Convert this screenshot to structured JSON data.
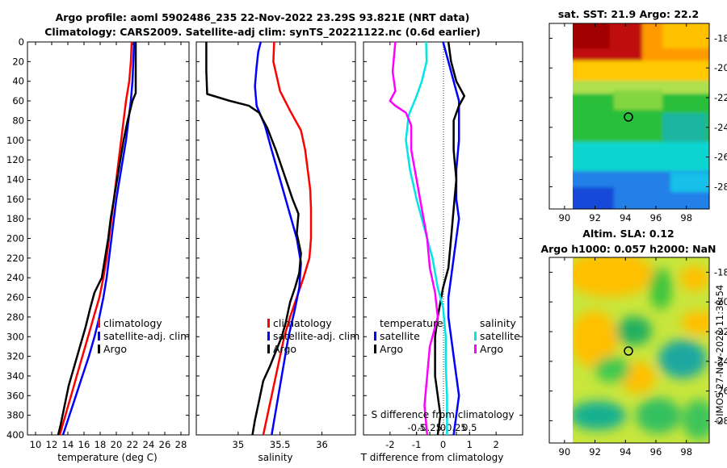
{
  "title_line1": "Argo profile: aoml 5902486_235 22-Nov-2022 23.29S 93.821E (NRT data)",
  "title_line2": "Climatology: CARS2009. Satellite-adj clim: synTS_20221122.nc (0.6d earlier)",
  "colors": {
    "climatology": "#ff0000",
    "satellite": "#0000ff",
    "argo": "#000000",
    "sat_salinity": "#00e5e5",
    "argo_salinity": "#ff00ff"
  },
  "legend_temp": {
    "clim": "climatology",
    "sat": "satellite-adj. clim",
    "argo": "Argo"
  },
  "legend_sal": {
    "clim": "climatology",
    "sat": "satellite-adj. clim",
    "argo": "Argo"
  },
  "legend_diff": {
    "temp_head": "temperature",
    "sal_head": "salinity",
    "sat": "satellite",
    "argo": "Argo",
    "sat2": "satellite",
    "argo2": "Argo"
  },
  "map_sst": {
    "title": "sat. SST: 21.9 Argo: 22.2",
    "lat": "23.29S",
    "lon": "93.821E"
  },
  "map_sla": {
    "title1": "Altim. SLA: 0.12",
    "title2": "Argo h1000: 0.057 h2000: NaN"
  },
  "credit": "©IMOS 27-Nov-2022 11:38:54",
  "chart_data": [
    {
      "type": "line",
      "panel": "temperature",
      "xlabel": "temperature (deg C)",
      "ylabel": "depth",
      "xlim": [
        9,
        29
      ],
      "ylim": [
        400,
        0
      ],
      "y_inverted": true,
      "xticks": [
        10,
        12,
        14,
        16,
        18,
        20,
        22,
        24,
        26,
        28
      ],
      "yticks": [
        0,
        20,
        40,
        60,
        80,
        100,
        120,
        140,
        160,
        180,
        200,
        220,
        240,
        260,
        280,
        300,
        320,
        340,
        360,
        380,
        400
      ],
      "series": [
        {
          "name": "climatology",
          "color": "#ff0000",
          "points": [
            [
              21.9,
              0
            ],
            [
              21.8,
              20
            ],
            [
              21.6,
              40
            ],
            [
              21.2,
              60
            ],
            [
              20.9,
              80
            ],
            [
              20.6,
              100
            ],
            [
              20.3,
              120
            ],
            [
              20.0,
              140
            ],
            [
              19.7,
              160
            ],
            [
              19.4,
              180
            ],
            [
              19.1,
              200
            ],
            [
              18.8,
              220
            ],
            [
              18.4,
              240
            ],
            [
              17.9,
              260
            ],
            [
              17.2,
              280
            ],
            [
              16.5,
              300
            ],
            [
              15.8,
              320
            ],
            [
              15.1,
              340
            ],
            [
              14.4,
              360
            ],
            [
              13.7,
              380
            ],
            [
              13.0,
              400
            ]
          ]
        },
        {
          "name": "satellite-adj. clim",
          "color": "#0000ff",
          "points": [
            [
              22.2,
              0
            ],
            [
              22.1,
              20
            ],
            [
              22.0,
              40
            ],
            [
              21.8,
              60
            ],
            [
              21.5,
              80
            ],
            [
              21.2,
              100
            ],
            [
              20.8,
              120
            ],
            [
              20.4,
              140
            ],
            [
              20.0,
              160
            ],
            [
              19.7,
              180
            ],
            [
              19.4,
              200
            ],
            [
              19.1,
              220
            ],
            [
              18.8,
              240
            ],
            [
              18.4,
              260
            ],
            [
              17.9,
              280
            ],
            [
              17.3,
              300
            ],
            [
              16.6,
              320
            ],
            [
              15.8,
              340
            ],
            [
              15.0,
              360
            ],
            [
              14.2,
              380
            ],
            [
              13.4,
              400
            ]
          ]
        },
        {
          "name": "Argo",
          "color": "#000000",
          "points": [
            [
              22.4,
              0
            ],
            [
              22.4,
              20
            ],
            [
              22.4,
              40
            ],
            [
              22.4,
              52
            ],
            [
              22.0,
              60
            ],
            [
              21.4,
              80
            ],
            [
              20.9,
              100
            ],
            [
              20.5,
              120
            ],
            [
              20.1,
              140
            ],
            [
              19.7,
              160
            ],
            [
              19.3,
              180
            ],
            [
              19.0,
              200
            ],
            [
              18.6,
              220
            ],
            [
              18.2,
              240
            ],
            [
              17.3,
              255
            ],
            [
              16.8,
              270
            ],
            [
              16.2,
              290
            ],
            [
              15.5,
              310
            ],
            [
              14.8,
              330
            ],
            [
              14.1,
              350
            ],
            [
              13.6,
              370
            ],
            [
              13.1,
              390
            ],
            [
              12.8,
              400
            ]
          ]
        }
      ]
    },
    {
      "type": "line",
      "panel": "salinity",
      "xlabel": "salinity",
      "xlim": [
        34.5,
        36.4
      ],
      "ylim": [
        400,
        0
      ],
      "y_inverted": true,
      "xticks": [
        35,
        35.5,
        36
      ],
      "xticklabels": [
        "35",
        "35.5",
        "36"
      ],
      "series": [
        {
          "name": "climatology",
          "color": "#ff0000",
          "points": [
            [
              35.43,
              0
            ],
            [
              35.42,
              20
            ],
            [
              35.5,
              50
            ],
            [
              35.62,
              70
            ],
            [
              35.75,
              90
            ],
            [
              35.8,
              110
            ],
            [
              35.83,
              130
            ],
            [
              35.86,
              150
            ],
            [
              35.87,
              170
            ],
            [
              35.87,
              200
            ],
            [
              35.85,
              220
            ],
            [
              35.78,
              240
            ],
            [
              35.7,
              260
            ],
            [
              35.62,
              280
            ],
            [
              35.55,
              300
            ],
            [
              35.5,
              320
            ],
            [
              35.45,
              340
            ],
            [
              35.4,
              360
            ],
            [
              35.35,
              380
            ],
            [
              35.3,
              400
            ]
          ]
        },
        {
          "name": "satellite-adj. clim",
          "color": "#0000ff",
          "points": [
            [
              35.27,
              0
            ],
            [
              35.24,
              10
            ],
            [
              35.22,
              25
            ],
            [
              35.2,
              45
            ],
            [
              35.22,
              65
            ],
            [
              35.32,
              85
            ],
            [
              35.4,
              110
            ],
            [
              35.5,
              140
            ],
            [
              35.6,
              170
            ],
            [
              35.7,
              200
            ],
            [
              35.75,
              225
            ],
            [
              35.73,
              250
            ],
            [
              35.67,
              275
            ],
            [
              35.6,
              300
            ],
            [
              35.55,
              325
            ],
            [
              35.5,
              350
            ],
            [
              35.45,
              375
            ],
            [
              35.4,
              400
            ]
          ]
        },
        {
          "name": "Argo",
          "color": "#000000",
          "points": [
            [
              34.62,
              0
            ],
            [
              34.62,
              30
            ],
            [
              34.63,
              53
            ],
            [
              34.9,
              60
            ],
            [
              35.13,
              65
            ],
            [
              35.25,
              72
            ],
            [
              35.35,
              88
            ],
            [
              35.45,
              110
            ],
            [
              35.55,
              135
            ],
            [
              35.65,
              160
            ],
            [
              35.72,
              175
            ],
            [
              35.7,
              195
            ],
            [
              35.75,
              215
            ],
            [
              35.73,
              235
            ],
            [
              35.68,
              250
            ],
            [
              35.62,
              265
            ],
            [
              35.57,
              285
            ],
            [
              35.52,
              300
            ],
            [
              35.45,
              315
            ],
            [
              35.38,
              330
            ],
            [
              35.3,
              345
            ],
            [
              35.25,
              365
            ],
            [
              35.2,
              385
            ],
            [
              35.17,
              400
            ]
          ]
        }
      ]
    },
    {
      "type": "line",
      "panel": "difference",
      "xlabel": "T difference from climatology",
      "xlabel_top": "S difference from climatology",
      "xlim": [
        -3,
        3
      ],
      "ylim": [
        400,
        0
      ],
      "y_inverted": true,
      "xticks": [
        -2,
        -1,
        0,
        1,
        2
      ],
      "xticklabels": [
        "-2",
        "-1",
        "0",
        "1",
        "2"
      ],
      "sticks": [
        -1,
        -0.5,
        0,
        0.5,
        1
      ],
      "sticklabels": [
        "-0.5",
        "-0.25",
        "0",
        "0.25",
        "0.5"
      ],
      "series": [
        {
          "name": "temperature satellite",
          "color": "#0000ff",
          "points": [
            [
              0.0,
              0
            ],
            [
              0.2,
              20
            ],
            [
              0.4,
              40
            ],
            [
              0.6,
              60
            ],
            [
              0.6,
              80
            ],
            [
              0.6,
              100
            ],
            [
              0.5,
              130
            ],
            [
              0.5,
              160
            ],
            [
              0.6,
              180
            ],
            [
              0.5,
              200
            ],
            [
              0.4,
              220
            ],
            [
              0.3,
              240
            ],
            [
              0.2,
              260
            ],
            [
              0.2,
              280
            ],
            [
              0.3,
              300
            ],
            [
              0.4,
              320
            ],
            [
              0.5,
              340
            ],
            [
              0.6,
              360
            ],
            [
              0.5,
              380
            ],
            [
              0.4,
              400
            ]
          ]
        },
        {
          "name": "temperature Argo",
          "color": "#000000",
          "points": [
            [
              0.2,
              0
            ],
            [
              0.3,
              20
            ],
            [
              0.5,
              40
            ],
            [
              0.8,
              55
            ],
            [
              0.6,
              65
            ],
            [
              0.4,
              80
            ],
            [
              0.4,
              110
            ],
            [
              0.5,
              140
            ],
            [
              0.4,
              170
            ],
            [
              0.3,
              200
            ],
            [
              0.2,
              230
            ],
            [
              0.0,
              250
            ],
            [
              -0.1,
              265
            ],
            [
              -0.2,
              280
            ],
            [
              -0.3,
              300
            ],
            [
              -0.3,
              320
            ],
            [
              -0.3,
              340
            ],
            [
              -0.2,
              360
            ],
            [
              -0.1,
              380
            ],
            [
              -0.2,
              400
            ]
          ]
        },
        {
          "name": "salinity satellite",
          "color": "#00e5e5",
          "points": [
            [
              -0.64,
              0
            ],
            [
              -0.62,
              20
            ],
            [
              -0.8,
              40
            ],
            [
              -1.0,
              55
            ],
            [
              -1.3,
              75
            ],
            [
              -1.4,
              100
            ],
            [
              -1.25,
              130
            ],
            [
              -1.0,
              160
            ],
            [
              -0.7,
              190
            ],
            [
              -0.4,
              220
            ],
            [
              -0.2,
              250
            ],
            [
              0.0,
              270
            ],
            [
              0.1,
              300
            ],
            [
              0.1,
              330
            ],
            [
              0.15,
              360
            ],
            [
              0.15,
              400
            ]
          ]
        },
        {
          "name": "salinity Argo",
          "color": "#ff00ff",
          "points": [
            [
              -1.8,
              0
            ],
            [
              -1.9,
              30
            ],
            [
              -1.8,
              50
            ],
            [
              -2.0,
              60
            ],
            [
              -1.8,
              65
            ],
            [
              -1.4,
              72
            ],
            [
              -1.2,
              85
            ],
            [
              -1.2,
              110
            ],
            [
              -1.0,
              140
            ],
            [
              -0.8,
              170
            ],
            [
              -0.6,
              200
            ],
            [
              -0.5,
              230
            ],
            [
              -0.3,
              255
            ],
            [
              -0.2,
              280
            ],
            [
              -0.5,
              310
            ],
            [
              -0.6,
              340
            ],
            [
              -0.7,
              370
            ],
            [
              -0.6,
              400
            ]
          ]
        }
      ]
    },
    {
      "type": "heatmap",
      "panel": "sat. SST map",
      "title": "sat. SST: 21.9 Argo: 22.2",
      "xlim": [
        89,
        99.5
      ],
      "ylim": [
        -29.5,
        -17
      ],
      "xticks": [
        90,
        92,
        94,
        96,
        98
      ],
      "yticks": [
        -28,
        -26,
        -24,
        -22,
        -20,
        -18
      ],
      "marker": {
        "lon": 93.821,
        "lat": -23.29
      }
    },
    {
      "type": "heatmap",
      "panel": "Altim. SLA map",
      "title": "Altim. SLA: 0.12",
      "xlim": [
        89,
        99.5
      ],
      "ylim": [
        -29.5,
        -17
      ],
      "xticks": [
        90,
        92,
        94,
        96,
        98
      ],
      "yticks": [
        -28,
        -26,
        -24,
        -22,
        -20,
        -18
      ],
      "marker": {
        "lon": 93.821,
        "lat": -23.29
      }
    }
  ]
}
